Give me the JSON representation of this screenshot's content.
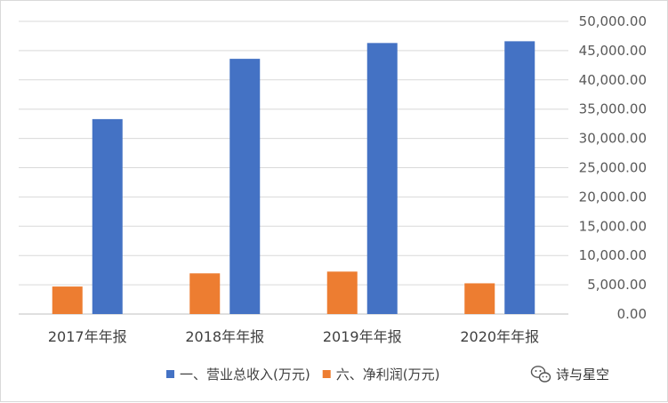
{
  "chart_data": {
    "type": "bar",
    "categories": [
      "2017年年报",
      "2018年年报",
      "2019年年报",
      "2020年年报"
    ],
    "series": [
      {
        "name": "六、净利润(万元)",
        "values": [
          4700,
          6950,
          7250,
          5250
        ],
        "color": "#ed7d31"
      },
      {
        "name": "一、营业总收入(万元)",
        "values": [
          33300,
          43600,
          46300,
          46600
        ],
        "color": "#4472c4"
      }
    ],
    "legend_order": [
      1,
      0
    ],
    "y_axis": {
      "position": "right",
      "min": 0,
      "max": 50000,
      "step": 5000,
      "tick_labels": [
        "0.00",
        "5,000.00",
        "10,000.00",
        "15,000.00",
        "20,000.00",
        "25,000.00",
        "30,000.00",
        "35,000.00",
        "40,000.00",
        "45,000.00",
        "50,000.00"
      ]
    },
    "grid": true,
    "legend_position": "bottom",
    "title": "",
    "xlabel": "",
    "ylabel": ""
  },
  "watermark": {
    "text": "诗与星空",
    "icon": "wechat-icon"
  }
}
